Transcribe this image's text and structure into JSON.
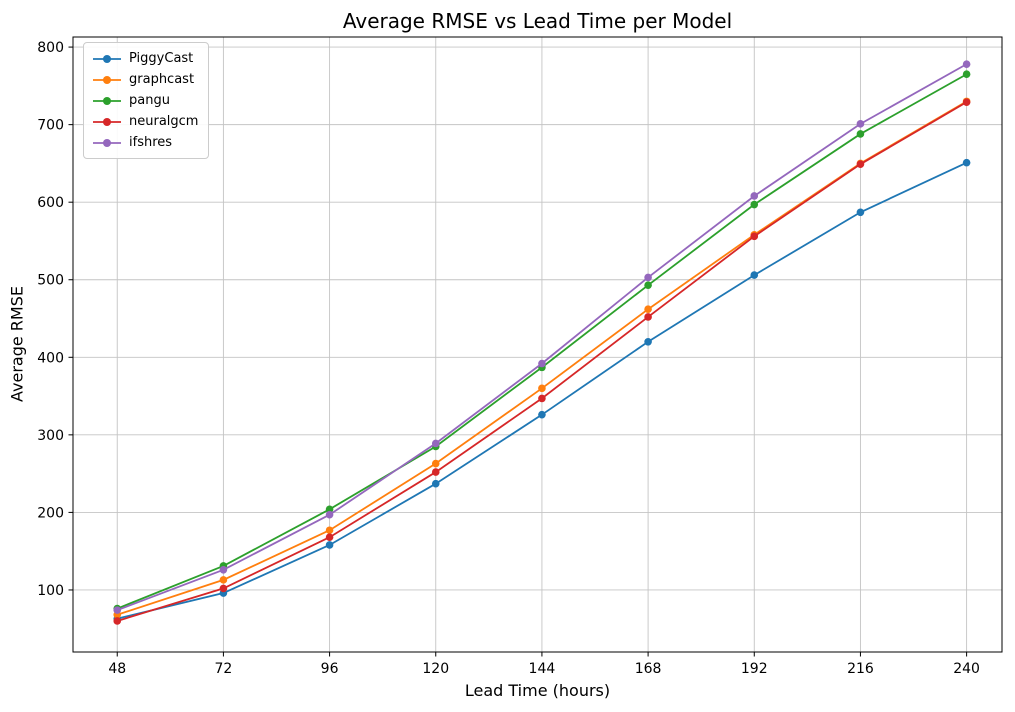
{
  "chart_data": {
    "type": "line",
    "title": "Average RMSE vs Lead Time per Model",
    "xlabel": "Lead Time (hours)",
    "ylabel": "Average RMSE",
    "x": [
      48,
      72,
      96,
      120,
      144,
      168,
      192,
      216,
      240
    ],
    "series": [
      {
        "name": "PiggyCast",
        "color": "#1f77b4",
        "values": [
          63,
          96,
          158,
          237,
          326,
          420,
          506,
          587,
          651
        ]
      },
      {
        "name": "graphcast",
        "color": "#ff7f0e",
        "values": [
          68,
          113,
          177,
          263,
          360,
          462,
          558,
          650,
          730
        ]
      },
      {
        "name": "pangu",
        "color": "#2ca02c",
        "values": [
          76,
          131,
          204,
          285,
          387,
          493,
          597,
          688,
          765
        ]
      },
      {
        "name": "neuralgcm",
        "color": "#d62728",
        "values": [
          60,
          102,
          168,
          252,
          347,
          452,
          556,
          649,
          729
        ]
      },
      {
        "name": "ifshres",
        "color": "#9467bd",
        "values": [
          74,
          126,
          197,
          289,
          392,
          503,
          608,
          701,
          778
        ]
      }
    ],
    "xticks": [
      48,
      72,
      96,
      120,
      144,
      168,
      192,
      216,
      240
    ],
    "yticks": [
      100,
      200,
      300,
      400,
      500,
      600,
      700,
      800
    ],
    "xlim": [
      38,
      248
    ],
    "ylim": [
      20,
      813
    ],
    "grid": true,
    "legend_position": "upper left",
    "marker": "circle"
  },
  "style": {
    "background": "#ffffff",
    "grid_color": "#c4c4c4",
    "spine_color": "#000000",
    "tick_label_color": "#000000",
    "legend_border": "#cccccc"
  }
}
